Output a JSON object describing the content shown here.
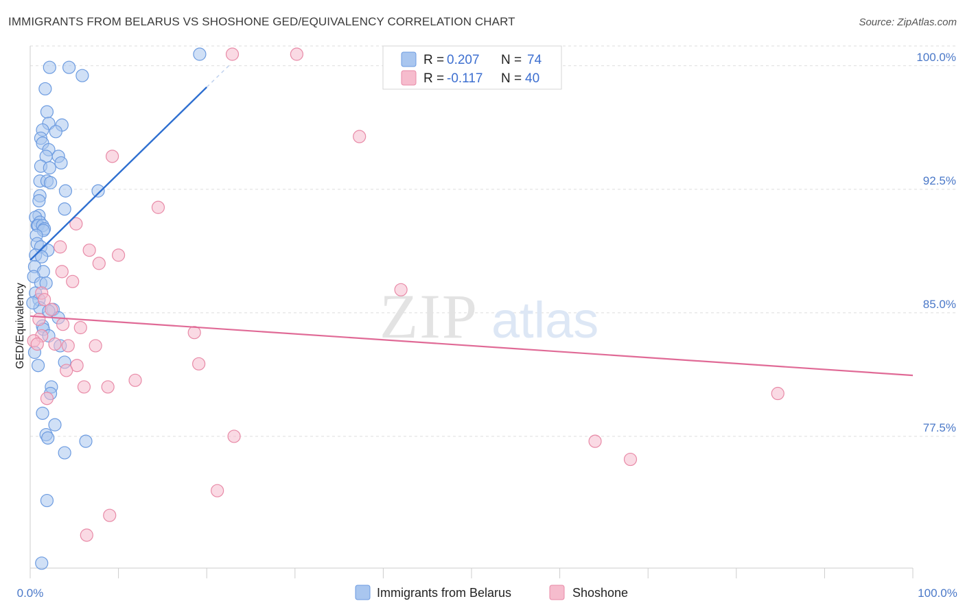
{
  "title": "IMMIGRANTS FROM BELARUS VS SHOSHONE GED/EQUIVALENCY CORRELATION CHART",
  "source": "Source: ZipAtlas.com",
  "watermark": {
    "zip": "ZIP",
    "atlas": "atlas"
  },
  "colors": {
    "blue_fill": "#a9c6ef",
    "blue_stroke": "#6c9be0",
    "blue_line": "#2e6fd0",
    "pink_fill": "#f6bccd",
    "pink_stroke": "#e88aa7",
    "pink_line": "#e06a96",
    "grid": "#dddddd",
    "tick_text": "#4a78c8"
  },
  "legend": {
    "rows": [
      {
        "series": "blue",
        "r_label": "R = ",
        "r_value": "0.207",
        "n_label": "N = ",
        "n_value": "74"
      },
      {
        "series": "pink",
        "r_label": "R = ",
        "r_value": "-0.117",
        "n_label": "N = ",
        "n_value": "40"
      }
    ]
  },
  "bottom_legend": [
    {
      "series": "blue",
      "label": "Immigrants from Belarus"
    },
    {
      "series": "pink",
      "label": "Shoshone"
    }
  ],
  "chart_data": {
    "type": "scatter",
    "title": "IMMIGRANTS FROM BELARUS VS SHOSHONE GED/EQUIVALENCY CORRELATION CHART",
    "xlabel": "",
    "ylabel": "GED/Equivalency",
    "xlim": [
      0,
      100
    ],
    "ylim": [
      69.5,
      101.2
    ],
    "x_tick_labels": [
      "0.0%",
      "100.0%"
    ],
    "y_ticks": [
      {
        "value": 100.0,
        "label": "100.0%"
      },
      {
        "value": 92.5,
        "label": "92.5%"
      },
      {
        "value": 85.0,
        "label": "85.0%"
      },
      {
        "value": 77.5,
        "label": "77.5%"
      }
    ],
    "series": [
      {
        "name": "Immigrants from Belarus",
        "color": "blue",
        "r": 0.207,
        "n": 74,
        "trend": {
          "x": [
            0.0,
            20.0
          ],
          "y": [
            88.2,
            98.7
          ],
          "dash_x": [
            20.0,
            22.5
          ],
          "dash_y": [
            98.7,
            100.0
          ]
        },
        "points": [
          [
            19.2,
            100.7
          ],
          [
            2.2,
            99.9
          ],
          [
            4.4,
            99.9
          ],
          [
            5.9,
            99.4
          ],
          [
            1.7,
            98.6
          ],
          [
            1.9,
            97.2
          ],
          [
            2.1,
            96.5
          ],
          [
            3.6,
            96.4
          ],
          [
            1.4,
            96.1
          ],
          [
            2.9,
            96.0
          ],
          [
            1.2,
            95.6
          ],
          [
            1.4,
            95.3
          ],
          [
            2.1,
            94.9
          ],
          [
            1.8,
            94.5
          ],
          [
            3.2,
            94.5
          ],
          [
            3.5,
            94.1
          ],
          [
            1.2,
            93.9
          ],
          [
            2.2,
            93.8
          ],
          [
            1.1,
            93.0
          ],
          [
            1.9,
            93.0
          ],
          [
            2.3,
            92.9
          ],
          [
            7.7,
            92.4
          ],
          [
            4.0,
            92.4
          ],
          [
            1.1,
            92.1
          ],
          [
            1.0,
            91.8
          ],
          [
            3.9,
            91.3
          ],
          [
            1.0,
            90.9
          ],
          [
            0.6,
            90.8
          ],
          [
            1.1,
            90.5
          ],
          [
            0.8,
            90.3
          ],
          [
            0.9,
            90.3
          ],
          [
            1.4,
            90.3
          ],
          [
            1.6,
            90.1
          ],
          [
            1.5,
            90.0
          ],
          [
            0.7,
            89.7
          ],
          [
            0.8,
            89.2
          ],
          [
            1.2,
            89.0
          ],
          [
            2.0,
            88.8
          ],
          [
            0.6,
            88.5
          ],
          [
            1.3,
            88.4
          ],
          [
            0.5,
            87.8
          ],
          [
            1.5,
            87.5
          ],
          [
            0.4,
            87.2
          ],
          [
            1.2,
            86.8
          ],
          [
            1.8,
            86.8
          ],
          [
            0.6,
            86.2
          ],
          [
            1.0,
            85.8
          ],
          [
            1.1,
            85.3
          ],
          [
            0.3,
            85.6
          ],
          [
            2.6,
            85.2
          ],
          [
            2.1,
            85.1
          ],
          [
            3.2,
            84.7
          ],
          [
            1.4,
            84.2
          ],
          [
            1.5,
            84.0
          ],
          [
            2.1,
            83.6
          ],
          [
            3.4,
            83.0
          ],
          [
            0.5,
            82.6
          ],
          [
            3.9,
            82.0
          ],
          [
            0.9,
            81.8
          ],
          [
            2.4,
            80.5
          ],
          [
            2.3,
            80.1
          ],
          [
            1.4,
            78.9
          ],
          [
            2.8,
            78.2
          ],
          [
            1.8,
            77.6
          ],
          [
            2.0,
            77.4
          ],
          [
            6.3,
            77.2
          ],
          [
            3.9,
            76.5
          ],
          [
            1.9,
            73.6
          ],
          [
            1.3,
            69.8
          ]
        ]
      },
      {
        "name": "Shoshone",
        "color": "pink",
        "r": -0.117,
        "n": 40,
        "trend": {
          "x": [
            0.0,
            100.0
          ],
          "y": [
            84.8,
            81.2
          ]
        },
        "points": [
          [
            22.9,
            100.7
          ],
          [
            30.2,
            100.7
          ],
          [
            37.3,
            95.7
          ],
          [
            9.3,
            94.5
          ],
          [
            14.5,
            91.4
          ],
          [
            5.2,
            90.4
          ],
          [
            3.4,
            89.0
          ],
          [
            6.7,
            88.8
          ],
          [
            10.0,
            88.5
          ],
          [
            7.8,
            88.0
          ],
          [
            3.6,
            87.5
          ],
          [
            4.8,
            86.9
          ],
          [
            1.3,
            86.2
          ],
          [
            1.6,
            85.8
          ],
          [
            42.0,
            86.4
          ],
          [
            2.4,
            85.2
          ],
          [
            1.0,
            84.6
          ],
          [
            3.7,
            84.3
          ],
          [
            5.7,
            84.1
          ],
          [
            18.6,
            83.8
          ],
          [
            1.3,
            83.6
          ],
          [
            0.4,
            83.3
          ],
          [
            0.8,
            83.1
          ],
          [
            2.8,
            83.1
          ],
          [
            4.3,
            83.0
          ],
          [
            7.4,
            83.0
          ],
          [
            19.1,
            81.9
          ],
          [
            5.3,
            81.8
          ],
          [
            4.1,
            81.5
          ],
          [
            11.9,
            80.9
          ],
          [
            6.1,
            80.5
          ],
          [
            8.8,
            80.5
          ],
          [
            84.7,
            80.1
          ],
          [
            1.9,
            79.8
          ],
          [
            23.1,
            77.5
          ],
          [
            64.0,
            77.2
          ],
          [
            68.0,
            76.1
          ],
          [
            21.2,
            74.2
          ],
          [
            9.0,
            72.7
          ],
          [
            6.4,
            71.5
          ]
        ]
      }
    ]
  }
}
